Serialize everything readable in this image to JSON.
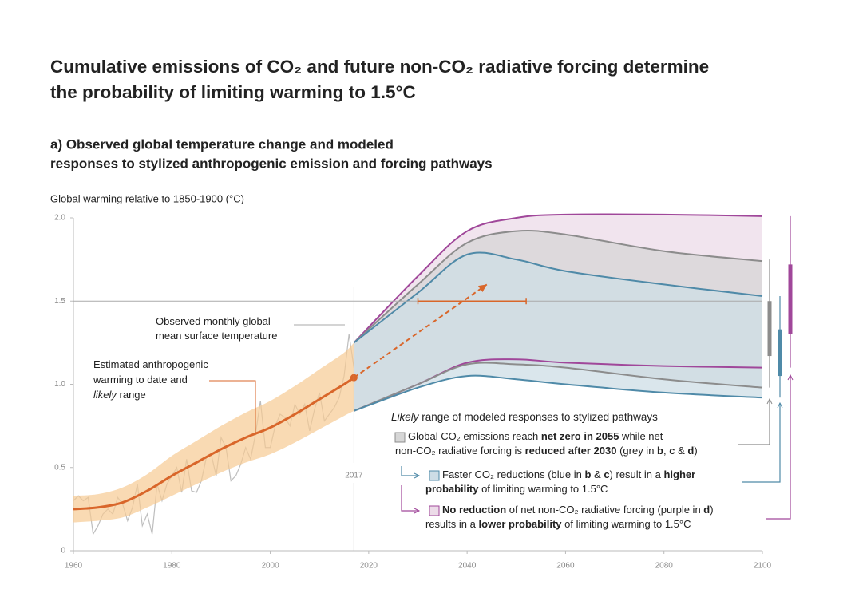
{
  "chart_data": {
    "type": "line",
    "title": [
      "Cumulative emissions of CO₂ and future non-CO₂ radiative forcing determine",
      "the probability of limiting warming to 1.5°C"
    ],
    "subtitle": [
      "a) Observed global temperature change and modeled",
      "responses to stylized anthropogenic emission and forcing pathways"
    ],
    "y_label": "Global warming relative to 1850-1900 (°C)",
    "xlim": [
      1960,
      2100
    ],
    "ylim": [
      0,
      2.0
    ],
    "xticks": [
      1960,
      1980,
      2000,
      2020,
      2040,
      2060,
      2080,
      2100
    ],
    "yticks": [
      0,
      0.5,
      {
        "value": 1,
        "label": "1.0"
      },
      1.5,
      {
        "value": 2,
        "label": "2.0"
      }
    ],
    "reference_line": 1.5,
    "marker_year": 2017,
    "observed": {
      "label": [
        [
          "Observed monthly global"
        ],
        [
          "mean surface temperature"
        ]
      ],
      "color": "#bdbdbd",
      "x": [
        1960,
        1961,
        1962,
        1963,
        1964,
        1965,
        1966,
        1967,
        1968,
        1969,
        1970,
        1971,
        1972,
        1973,
        1974,
        1975,
        1976,
        1977,
        1978,
        1979,
        1980,
        1981,
        1982,
        1983,
        1984,
        1985,
        1986,
        1987,
        1988,
        1989,
        1990,
        1991,
        1992,
        1993,
        1994,
        1995,
        1996,
        1997,
        1998,
        1999,
        2000,
        2001,
        2002,
        2003,
        2004,
        2005,
        2006,
        2007,
        2008,
        2009,
        2010,
        2011,
        2012,
        2013,
        2014,
        2015,
        2016,
        2017
      ],
      "values": [
        0.3,
        0.33,
        0.3,
        0.32,
        0.1,
        0.15,
        0.22,
        0.25,
        0.22,
        0.32,
        0.28,
        0.18,
        0.26,
        0.4,
        0.15,
        0.22,
        0.1,
        0.4,
        0.3,
        0.4,
        0.45,
        0.5,
        0.35,
        0.55,
        0.36,
        0.35,
        0.42,
        0.56,
        0.58,
        0.45,
        0.68,
        0.62,
        0.42,
        0.45,
        0.52,
        0.62,
        0.55,
        0.7,
        0.9,
        0.62,
        0.62,
        0.75,
        0.82,
        0.8,
        0.75,
        0.88,
        0.82,
        0.88,
        0.72,
        0.85,
        0.95,
        0.78,
        0.82,
        0.86,
        0.92,
        1.05,
        1.3,
        1.1
      ]
    },
    "anthropogenic": {
      "label": [
        [
          "Estimated anthropogenic"
        ],
        [
          "warming to date and"
        ],
        [
          {
            "text": "likely",
            "style": "italic"
          },
          " range"
        ]
      ],
      "color": "#d9662a",
      "band_color": "#f7cb93",
      "x": [
        1960,
        1965,
        1970,
        1975,
        1980,
        1985,
        1990,
        1995,
        2000,
        2005,
        2010,
        2015,
        2017
      ],
      "values": [
        0.25,
        0.26,
        0.29,
        0.36,
        0.45,
        0.53,
        0.61,
        0.68,
        0.74,
        0.82,
        0.91,
        1.0,
        1.04
      ],
      "low": [
        0.17,
        0.18,
        0.2,
        0.26,
        0.33,
        0.4,
        0.47,
        0.53,
        0.58,
        0.65,
        0.73,
        0.81,
        0.84
      ],
      "high": [
        0.33,
        0.34,
        0.38,
        0.46,
        0.57,
        0.66,
        0.75,
        0.83,
        0.9,
        0.99,
        1.09,
        1.19,
        1.25
      ]
    },
    "pathway_arrow": {
      "x": [
        2017,
        2044
      ],
      "values": [
        1.04,
        1.6
      ]
    },
    "crossing_range": {
      "x": [
        2030,
        2052
      ],
      "value": 1.5
    },
    "legend_title": [
      {
        "text": "Likely",
        "style": "italic"
      },
      " range of modeled responses to stylized pathways"
    ],
    "series": [
      {
        "name": [
          [
            "Global CO₂ emissions reach ",
            {
              "text": "net zero in 2055",
              "style": "bold"
            },
            " while net"
          ],
          [
            "non-CO₂ radiative forcing is ",
            {
              "text": "reduced after 2030",
              "style": "bold"
            },
            " (grey in ",
            {
              "text": "b",
              "style": "bold"
            },
            ", ",
            {
              "text": "c",
              "style": "bold"
            },
            " & ",
            {
              "text": "d",
              "style": "bold"
            },
            ")"
          ]
        ],
        "color": "#8c8c8c",
        "fill": "#d6d6d6",
        "x": [
          2017,
          2030,
          2040,
          2050,
          2060,
          2080,
          2100
        ],
        "high": [
          1.25,
          1.6,
          1.85,
          1.92,
          1.9,
          1.8,
          1.74
        ],
        "low": [
          0.84,
          1.0,
          1.12,
          1.12,
          1.1,
          1.03,
          0.98
        ],
        "range": [
          0.98,
          1.75
        ],
        "central_range": [
          1.17,
          1.5
        ]
      },
      {
        "name": [
          [
            "Faster CO₂ reductions (blue in ",
            {
              "text": "b",
              "style": "bold"
            },
            " & ",
            {
              "text": "c",
              "style": "bold"
            },
            ") result in a ",
            {
              "text": "higher",
              "style": "bold"
            }
          ],
          [
            {
              "text": "probability",
              "style": "bold"
            },
            " of limiting warming to 1.5°C"
          ]
        ],
        "color": "#4f8aa8",
        "fill": "#cddde6",
        "x": [
          2017,
          2030,
          2040,
          2050,
          2060,
          2080,
          2100
        ],
        "high": [
          1.25,
          1.55,
          1.78,
          1.75,
          1.68,
          1.6,
          1.53
        ],
        "low": [
          0.84,
          0.98,
          1.05,
          1.03,
          1.0,
          0.95,
          0.92
        ],
        "range": [
          0.92,
          1.53
        ],
        "central_range": [
          1.05,
          1.33
        ]
      },
      {
        "name": [
          [
            {
              "text": "No reduction",
              "style": "bold"
            },
            " of net non-CO₂ radiative forcing (purple in ",
            {
              "text": "d",
              "style": "bold"
            },
            ")"
          ],
          [
            "results in a ",
            {
              "text": "lower probability",
              "style": "bold"
            },
            " of limiting warming to 1.5°C"
          ]
        ],
        "color": "#a0479a",
        "fill": "#ecdbe8",
        "x": [
          2017,
          2030,
          2040,
          2050,
          2060,
          2080,
          2100
        ],
        "high": [
          1.25,
          1.65,
          1.92,
          2.0,
          2.02,
          2.02,
          2.01
        ],
        "low": [
          0.84,
          1.0,
          1.13,
          1.15,
          1.13,
          1.11,
          1.1
        ],
        "range": [
          1.1,
          2.01
        ],
        "central_range": [
          1.3,
          1.72
        ]
      }
    ]
  }
}
